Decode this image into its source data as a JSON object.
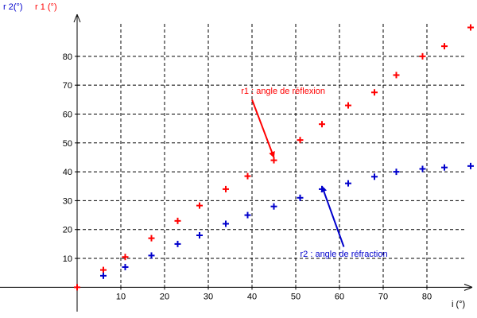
{
  "chart_data": {
    "type": "scatter",
    "xlabel": "i (°)",
    "ylabels": [
      {
        "text": "r 2(°)",
        "color": "#0000cc"
      },
      {
        "text": "r 1 (°)",
        "color": "#ff0000"
      }
    ],
    "xlim": [
      -10,
      90
    ],
    "ylim": [
      -1,
      94
    ],
    "xticks": [
      10,
      20,
      30,
      40,
      50,
      60,
      70,
      80
    ],
    "yticks": [
      10,
      20,
      30,
      40,
      50,
      60,
      70,
      80
    ],
    "grid": true,
    "series": [
      {
        "key": "r1",
        "color": "#ff0000",
        "marker": "plus",
        "points": [
          [
            0,
            0
          ],
          [
            6,
            6
          ],
          [
            11,
            10.5
          ],
          [
            17,
            17
          ],
          [
            23,
            23
          ],
          [
            28,
            28.3
          ],
          [
            34,
            34
          ],
          [
            39,
            38.5
          ],
          [
            45,
            44
          ],
          [
            51,
            51
          ],
          [
            56,
            56.5
          ],
          [
            62,
            63
          ],
          [
            68,
            67.5
          ],
          [
            73,
            73.5
          ],
          [
            79,
            80
          ],
          [
            84,
            83.5
          ],
          [
            90,
            90
          ]
        ]
      },
      {
        "key": "r2",
        "color": "#0000cc",
        "marker": "plus",
        "points": [
          [
            6,
            4
          ],
          [
            11,
            7
          ],
          [
            17,
            11
          ],
          [
            23,
            15
          ],
          [
            28,
            18
          ],
          [
            34,
            22
          ],
          [
            39,
            25
          ],
          [
            45,
            28
          ],
          [
            51,
            31
          ],
          [
            56,
            34
          ],
          [
            62,
            36
          ],
          [
            68,
            38.3
          ],
          [
            73,
            40
          ],
          [
            79,
            41
          ],
          [
            84,
            41.5
          ],
          [
            90,
            42
          ]
        ]
      }
    ],
    "annotations": [
      {
        "text": "r1 : angle de réflexion",
        "color": "#ff0000",
        "text_at": [
          37.5,
          67
        ],
        "arrow_from": [
          40,
          65
        ],
        "arrow_to": [
          45,
          45
        ]
      },
      {
        "text": "r2 : angle de réfraction",
        "color": "#0000cc",
        "text_at": [
          51,
          10.5
        ],
        "arrow_from": [
          61,
          14
        ],
        "arrow_to": [
          56,
          35
        ]
      }
    ]
  }
}
